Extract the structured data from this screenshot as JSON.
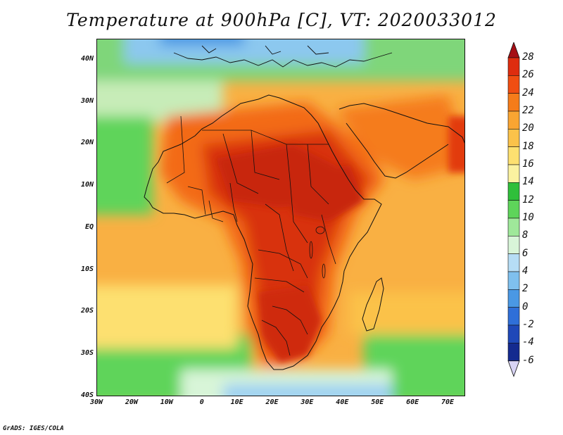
{
  "title": "Temperature at 900hPa [C], VT: 2020033012",
  "credit": "GrADS: IGES/COLA",
  "map": {
    "lon_range": [
      -30,
      75
    ],
    "lat_range": [
      -40,
      45
    ],
    "lat_labels": [
      "40N",
      "30N",
      "20N",
      "10N",
      "EQ",
      "10S",
      "20S",
      "30S",
      "40S"
    ],
    "lon_labels": [
      "30W",
      "20W",
      "10W",
      "0",
      "10E",
      "20E",
      "30E",
      "40E",
      "50E",
      "60E",
      "70E"
    ],
    "lat_values": [
      40,
      30,
      20,
      10,
      0,
      -10,
      -20,
      -30,
      -40
    ],
    "lon_values": [
      -30,
      -20,
      -10,
      0,
      10,
      20,
      30,
      40,
      50,
      60,
      70
    ]
  },
  "colorbar": {
    "labels": [
      "28",
      "26",
      "24",
      "22",
      "20",
      "18",
      "16",
      "14",
      "12",
      "10",
      "8",
      "6",
      "4",
      "2",
      "0",
      "-2",
      "-4",
      "-6"
    ],
    "colors": [
      "#a50f15",
      "#de2d0f",
      "#f04e12",
      "#f57c1a",
      "#f9a532",
      "#fbc24a",
      "#fde070",
      "#fbf2a0",
      "#2fbf3a",
      "#5ed45a",
      "#9fe89a",
      "#d8f5d8",
      "#b6ddf5",
      "#7fc0ee",
      "#4a98e4",
      "#2f6fd8",
      "#1f48b8",
      "#142a8f",
      "#0a0f5a"
    ]
  }
}
